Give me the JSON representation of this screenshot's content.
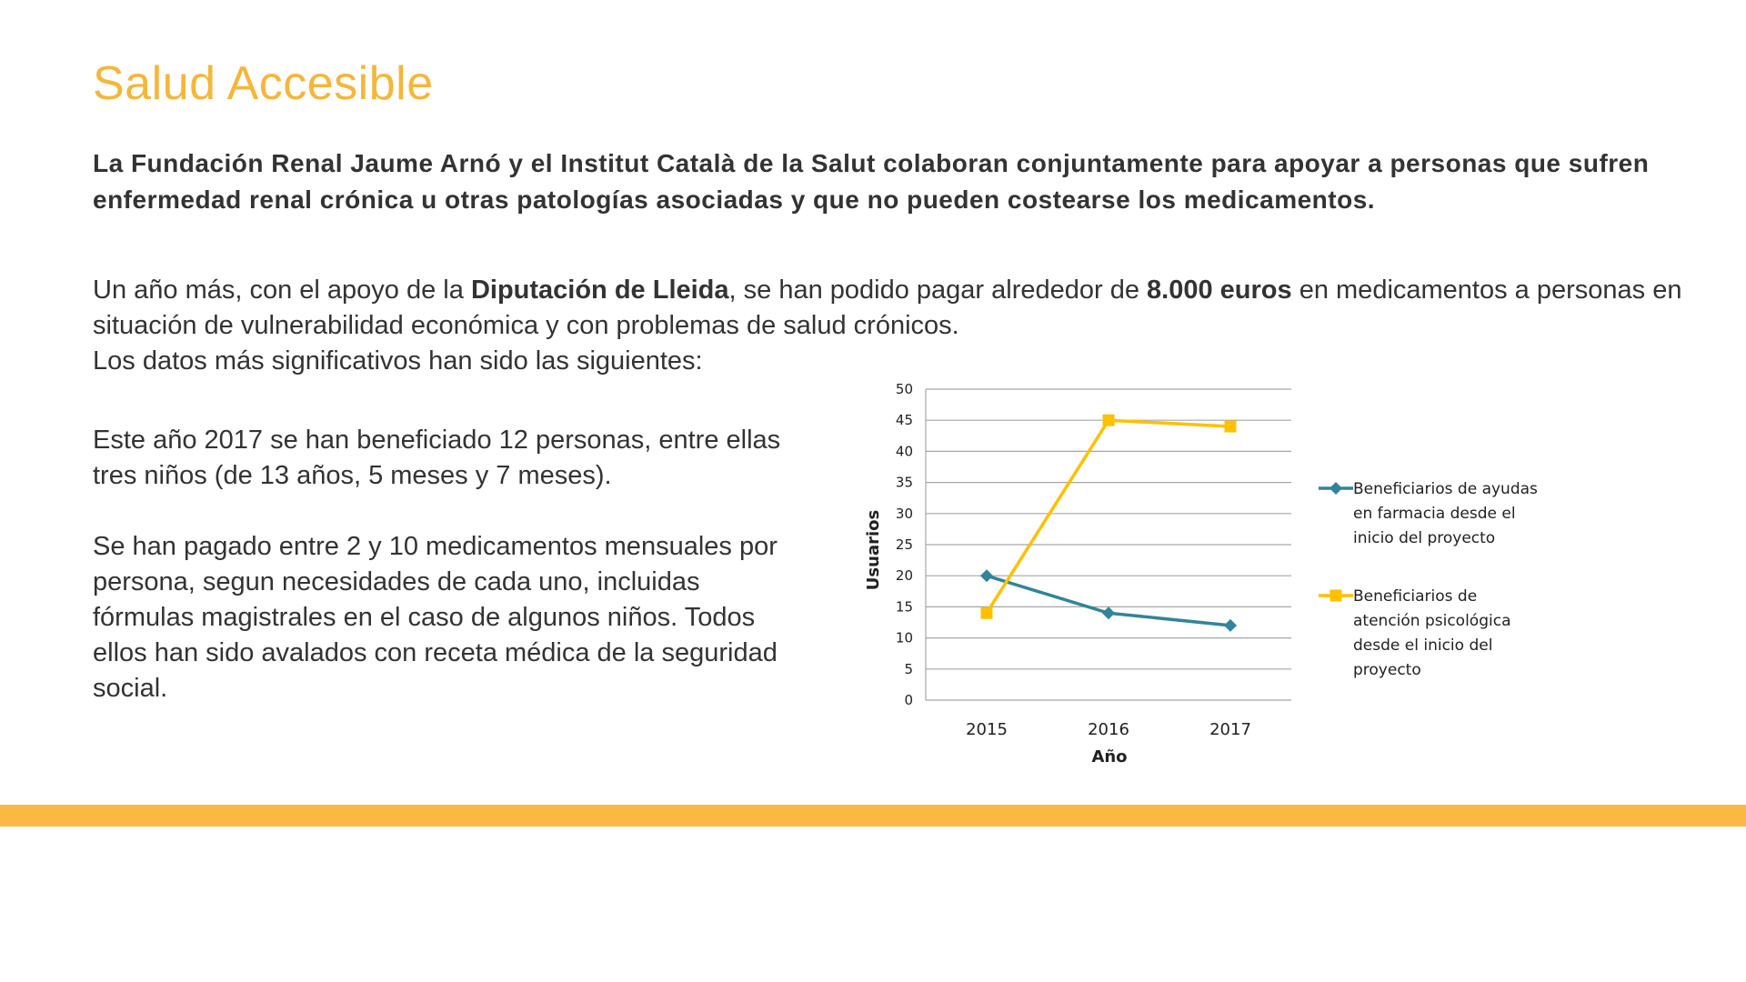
{
  "page": {
    "title": "Salud Accesible",
    "lead": "La Fundación Renal Jaume Arnó y el Institut Català de la Salut colaboran conjuntamente para apoyar a personas que sufren enfermedad renal crónica u otras patologías asociadas y que no pueden costearse los medicamentos.",
    "intro": {
      "part1": "Un año más, con el apoyo de la ",
      "bold1": "Diputación de Lleida",
      "part2": ", se han podido pagar alrededor de ",
      "bold2": "8.000 euros",
      "part3": " en medicamentos a personas en situación de vulnerabilidad económica y con problemas de salud crónicos.",
      "line3": "Los datos más significativos han sido las siguientes:"
    },
    "paragraph1": "Este año 2017 se han beneficiado 12 personas, entre ellas tres niños (de 13 años, 5 meses y 7 meses).",
    "paragraph2": "Se han pagado entre 2 y 10 medicamentos mensuales por persona, segun necesidades de cada uno, incluidas fórmulas magistrales en el caso de algunos niños. Todos ellos han sido avalados con receta médica de la seguridad social."
  },
  "colors": {
    "title": "#f5b63a",
    "footer_bar": "#fbb944",
    "series_farmacia": "#31849b",
    "series_psicologica": "#ffc000",
    "gridline": "#a6a6a6"
  },
  "chart_data": {
    "type": "line",
    "title": "",
    "xlabel": "Año",
    "ylabel": "Usuarios",
    "categories": [
      "2015",
      "2016",
      "2017"
    ],
    "ylim": [
      0,
      50
    ],
    "yticks": [
      0,
      5,
      10,
      15,
      20,
      25,
      30,
      35,
      40,
      45,
      50
    ],
    "grid": true,
    "legend_position": "right",
    "series": [
      {
        "name": "Beneficiarios de ayudas en farmacia desde el inicio del proyecto",
        "legend_lines": [
          "Beneficiarios de ayudas",
          "en farmacia desde el",
          "inicio del proyecto"
        ],
        "marker": "diamond",
        "values": [
          20,
          14,
          12
        ]
      },
      {
        "name": "Beneficiarios de atención psicológica desde el inicio del proyecto",
        "legend_lines": [
          "Beneficiarios de",
          "atención psicológica",
          "desde el inicio del",
          "proyecto"
        ],
        "marker": "square",
        "values": [
          14,
          45,
          44
        ]
      }
    ]
  }
}
